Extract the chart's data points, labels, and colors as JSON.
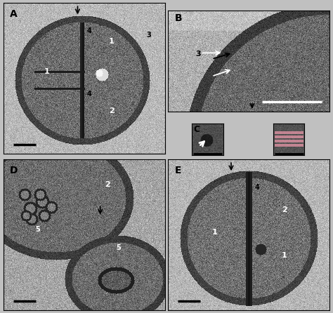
{
  "bg_color": "#c0c0c0",
  "label_color_black": "#000000",
  "label_color_white": "#ffffff",
  "pink_bar_color": "#e896a8",
  "panels": [
    "A",
    "B",
    "C",
    "D",
    "E"
  ],
  "scale_bar_color_black": "#000000",
  "scale_bar_color_white": "#ffffff"
}
